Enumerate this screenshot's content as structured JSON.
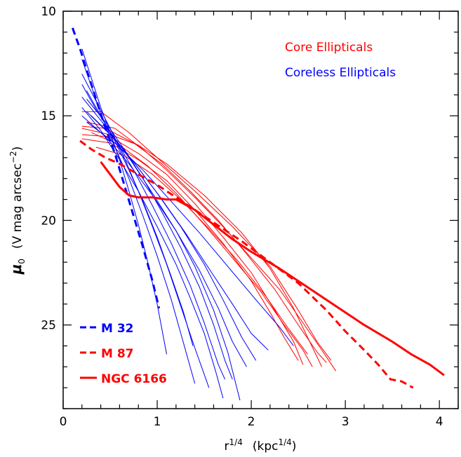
{
  "chart_data": {
    "type": "line",
    "title": "",
    "xlabel": {
      "base": "r",
      "exp": "1/4",
      "unit_open": "(kpc",
      "unit_exp": "1/4",
      "unit_close": ")"
    },
    "ylabel": {
      "symbol": "μ",
      "sub": "0",
      "unit_open": "(V mag arcsec",
      "unit_exp": "−2",
      "unit_close": ")"
    },
    "xlim": [
      0,
      4.2
    ],
    "ylim": [
      29,
      10
    ],
    "y_inverted": true,
    "x_ticks": [
      "0",
      "1",
      "2",
      "3",
      "4"
    ],
    "y_ticks": [
      "10",
      "15",
      "20",
      "25"
    ],
    "grid": false,
    "colors": {
      "core": "#ff0000",
      "coreless": "#0000ff",
      "axis": "#000000"
    },
    "legend": {
      "placement": "top-right",
      "entries": [
        {
          "label": "Core Ellipticals",
          "color": "#ff0000"
        },
        {
          "label": "Coreless Ellipticals",
          "color": "#0000ff"
        }
      ]
    },
    "highlight_legend": {
      "placement": "bottom-left",
      "entries": [
        {
          "label": "M 32",
          "color": "#0000ff",
          "dash": "dashed"
        },
        {
          "label": "M 87",
          "color": "#ff0000",
          "dash": "dashed"
        },
        {
          "label": "NGC 6166",
          "color": "#ff0000",
          "dash": "solid"
        }
      ]
    },
    "series": [
      {
        "group": "highlight",
        "name": "M 32",
        "color": "#0000ff",
        "dash": "dashed",
        "width": 3,
        "points": [
          [
            0.1,
            10.8
          ],
          [
            0.18,
            11.8
          ],
          [
            0.25,
            12.8
          ],
          [
            0.35,
            14.2
          ],
          [
            0.45,
            15.6
          ],
          [
            0.55,
            16.8
          ],
          [
            0.65,
            18.3
          ],
          [
            0.75,
            19.8
          ],
          [
            0.85,
            21.3
          ],
          [
            0.95,
            22.9
          ],
          [
            1.02,
            24.2
          ]
        ]
      },
      {
        "group": "highlight",
        "name": "M 87",
        "color": "#ff0000",
        "dash": "dashed",
        "width": 3,
        "points": [
          [
            0.18,
            16.2
          ],
          [
            0.3,
            16.6
          ],
          [
            0.45,
            17.0
          ],
          [
            0.6,
            17.3
          ],
          [
            0.8,
            17.8
          ],
          [
            1.0,
            18.3
          ],
          [
            1.3,
            19.2
          ],
          [
            1.6,
            20.1
          ],
          [
            1.9,
            21.0
          ],
          [
            2.2,
            22.0
          ],
          [
            2.5,
            23.0
          ],
          [
            2.8,
            24.3
          ],
          [
            3.0,
            25.3
          ],
          [
            3.2,
            26.2
          ],
          [
            3.35,
            26.9
          ],
          [
            3.48,
            27.6
          ],
          [
            3.6,
            27.7
          ],
          [
            3.72,
            28.0
          ]
        ]
      },
      {
        "group": "highlight",
        "name": "NGC 6166",
        "color": "#ff0000",
        "dash": "solid",
        "width": 3,
        "points": [
          [
            0.4,
            17.2
          ],
          [
            0.5,
            17.8
          ],
          [
            0.6,
            18.4
          ],
          [
            0.7,
            18.8
          ],
          [
            0.8,
            18.9
          ],
          [
            0.95,
            18.9
          ],
          [
            1.1,
            19.0
          ],
          [
            1.2,
            19.0
          ],
          [
            1.4,
            19.5
          ],
          [
            1.6,
            20.2
          ],
          [
            1.8,
            20.9
          ],
          [
            2.0,
            21.5
          ],
          [
            2.3,
            22.3
          ],
          [
            2.6,
            23.2
          ],
          [
            2.9,
            24.1
          ],
          [
            3.2,
            25.0
          ],
          [
            3.5,
            25.8
          ],
          [
            3.7,
            26.4
          ],
          [
            3.9,
            26.9
          ],
          [
            4.05,
            27.4
          ]
        ]
      },
      {
        "group": "core",
        "color": "#ff0000",
        "dash": "solid",
        "width": 1,
        "points": [
          [
            0.2,
            14.8
          ],
          [
            0.4,
            14.8
          ],
          [
            0.7,
            15.8
          ],
          [
            1.0,
            17.0
          ],
          [
            1.4,
            18.6
          ],
          [
            1.8,
            20.3
          ],
          [
            2.2,
            22.2
          ],
          [
            2.5,
            24.3
          ],
          [
            2.7,
            25.8
          ],
          [
            2.85,
            26.7
          ]
        ]
      },
      {
        "group": "core",
        "color": "#ff0000",
        "dash": "solid",
        "width": 1,
        "points": [
          [
            0.2,
            15.6
          ],
          [
            0.5,
            15.9
          ],
          [
            0.8,
            16.4
          ],
          [
            1.1,
            17.3
          ],
          [
            1.5,
            18.8
          ],
          [
            1.9,
            20.6
          ],
          [
            2.2,
            22.3
          ],
          [
            2.45,
            24.2
          ],
          [
            2.6,
            25.6
          ],
          [
            2.75,
            27.0
          ]
        ]
      },
      {
        "group": "core",
        "color": "#ff0000",
        "dash": "solid",
        "width": 1,
        "points": [
          [
            0.2,
            15.9
          ],
          [
            0.5,
            16.0
          ],
          [
            0.8,
            16.8
          ],
          [
            1.1,
            17.8
          ],
          [
            1.4,
            19.2
          ],
          [
            1.7,
            20.8
          ],
          [
            2.0,
            22.5
          ],
          [
            2.25,
            24.3
          ],
          [
            2.45,
            25.8
          ],
          [
            2.55,
            26.9
          ]
        ]
      },
      {
        "group": "core",
        "color": "#ff0000",
        "dash": "solid",
        "width": 1,
        "points": [
          [
            0.25,
            15.3
          ],
          [
            0.55,
            15.6
          ],
          [
            0.85,
            16.6
          ],
          [
            1.1,
            17.6
          ],
          [
            1.4,
            18.9
          ],
          [
            1.7,
            20.3
          ],
          [
            2.0,
            21.8
          ],
          [
            2.3,
            23.3
          ],
          [
            2.55,
            24.9
          ],
          [
            2.75,
            26.2
          ],
          [
            2.9,
            27.2
          ]
        ]
      },
      {
        "group": "core",
        "color": "#ff0000",
        "dash": "solid",
        "width": 1,
        "points": [
          [
            0.2,
            16.1
          ],
          [
            0.5,
            16.3
          ],
          [
            0.8,
            17.1
          ],
          [
            1.1,
            18.1
          ],
          [
            1.4,
            19.5
          ],
          [
            1.7,
            21.1
          ],
          [
            2.0,
            22.9
          ],
          [
            2.2,
            24.4
          ],
          [
            2.35,
            25.6
          ],
          [
            2.5,
            26.7
          ]
        ]
      },
      {
        "group": "core",
        "color": "#ff0000",
        "dash": "solid",
        "width": 1,
        "points": [
          [
            0.3,
            15.8
          ],
          [
            0.6,
            16.4
          ],
          [
            0.9,
            17.4
          ],
          [
            1.2,
            18.7
          ],
          [
            1.5,
            20.2
          ],
          [
            1.8,
            21.8
          ],
          [
            2.1,
            23.4
          ],
          [
            2.35,
            25.0
          ],
          [
            2.55,
            26.2
          ],
          [
            2.65,
            27.0
          ]
        ]
      },
      {
        "group": "core",
        "color": "#ff0000",
        "dash": "solid",
        "width": 1,
        "points": [
          [
            0.2,
            15.5
          ],
          [
            0.45,
            15.6
          ],
          [
            0.75,
            16.3
          ],
          [
            1.05,
            17.3
          ],
          [
            1.35,
            18.6
          ],
          [
            1.65,
            20.0
          ],
          [
            1.95,
            21.6
          ],
          [
            2.25,
            23.3
          ],
          [
            2.5,
            25.0
          ],
          [
            2.7,
            26.3
          ],
          [
            2.8,
            26.8
          ]
        ]
      },
      {
        "group": "core",
        "color": "#ff0000",
        "dash": "solid",
        "width": 1,
        "points": [
          [
            0.35,
            16.5
          ],
          [
            0.65,
            16.9
          ],
          [
            0.95,
            17.8
          ],
          [
            1.25,
            19.0
          ],
          [
            1.55,
            20.4
          ],
          [
            1.85,
            21.9
          ],
          [
            2.15,
            23.6
          ],
          [
            2.4,
            25.2
          ],
          [
            2.6,
            26.4
          ]
        ]
      },
      {
        "group": "coreless",
        "color": "#0000ff",
        "dash": "solid",
        "width": 1,
        "points": [
          [
            0.2,
            11.8
          ],
          [
            0.3,
            13.2
          ],
          [
            0.4,
            14.6
          ],
          [
            0.5,
            15.8
          ],
          [
            0.6,
            17.1
          ],
          [
            0.7,
            18.6
          ],
          [
            0.8,
            20.2
          ],
          [
            0.9,
            22.0
          ],
          [
            1.0,
            24.0
          ],
          [
            1.1,
            26.4
          ]
        ]
      },
      {
        "group": "coreless",
        "color": "#0000ff",
        "dash": "solid",
        "width": 1,
        "points": [
          [
            0.2,
            12.3
          ],
          [
            0.3,
            13.6
          ],
          [
            0.4,
            14.9
          ],
          [
            0.55,
            16.5
          ],
          [
            0.7,
            18.0
          ],
          [
            0.85,
            19.8
          ],
          [
            1.0,
            21.7
          ],
          [
            1.15,
            23.8
          ],
          [
            1.3,
            26.2
          ],
          [
            1.4,
            27.8
          ]
        ]
      },
      {
        "group": "coreless",
        "color": "#0000ff",
        "dash": "solid",
        "width": 1,
        "points": [
          [
            0.2,
            13.0
          ],
          [
            0.35,
            14.3
          ],
          [
            0.5,
            15.6
          ],
          [
            0.65,
            17.0
          ],
          [
            0.8,
            18.6
          ],
          [
            0.95,
            20.3
          ],
          [
            1.1,
            22.1
          ],
          [
            1.25,
            24.1
          ],
          [
            1.4,
            26.1
          ],
          [
            1.55,
            28.0
          ]
        ]
      },
      {
        "group": "coreless",
        "color": "#0000ff",
        "dash": "solid",
        "width": 1,
        "points": [
          [
            0.2,
            13.5
          ],
          [
            0.35,
            14.7
          ],
          [
            0.55,
            16.1
          ],
          [
            0.75,
            17.6
          ],
          [
            0.95,
            19.3
          ],
          [
            1.15,
            21.1
          ],
          [
            1.35,
            23.1
          ],
          [
            1.5,
            24.9
          ],
          [
            1.65,
            26.9
          ],
          [
            1.72,
            27.6
          ]
        ]
      },
      {
        "group": "coreless",
        "color": "#0000ff",
        "dash": "solid",
        "width": 1,
        "points": [
          [
            0.25,
            14.2
          ],
          [
            0.45,
            15.3
          ],
          [
            0.65,
            16.6
          ],
          [
            0.85,
            18.0
          ],
          [
            1.05,
            19.6
          ],
          [
            1.25,
            21.3
          ],
          [
            1.45,
            23.2
          ],
          [
            1.6,
            25.0
          ],
          [
            1.72,
            26.7
          ],
          [
            1.8,
            27.6
          ]
        ]
      },
      {
        "group": "coreless",
        "color": "#0000ff",
        "dash": "solid",
        "width": 1,
        "points": [
          [
            0.2,
            14.1
          ],
          [
            0.45,
            15.5
          ],
          [
            0.7,
            17.0
          ],
          [
            0.95,
            18.7
          ],
          [
            1.2,
            20.5
          ],
          [
            1.4,
            22.2
          ],
          [
            1.6,
            24.3
          ],
          [
            1.75,
            26.3
          ],
          [
            1.88,
            28.6
          ]
        ]
      },
      {
        "group": "coreless",
        "color": "#0000ff",
        "dash": "solid",
        "width": 1,
        "points": [
          [
            0.25,
            14.8
          ],
          [
            0.5,
            15.9
          ],
          [
            0.75,
            17.2
          ],
          [
            1.0,
            18.7
          ],
          [
            1.25,
            20.3
          ],
          [
            1.5,
            22.1
          ],
          [
            1.7,
            23.8
          ],
          [
            1.9,
            25.6
          ],
          [
            2.05,
            26.7
          ]
        ]
      },
      {
        "group": "coreless",
        "color": "#0000ff",
        "dash": "solid",
        "width": 1,
        "points": [
          [
            0.3,
            15.0
          ],
          [
            0.55,
            16.1
          ],
          [
            0.8,
            17.5
          ],
          [
            1.05,
            19.0
          ],
          [
            1.3,
            20.6
          ],
          [
            1.55,
            22.3
          ],
          [
            1.8,
            24.0
          ],
          [
            2.0,
            25.4
          ],
          [
            2.18,
            26.2
          ]
        ]
      },
      {
        "group": "coreless",
        "color": "#0000ff",
        "dash": "solid",
        "width": 1,
        "points": [
          [
            0.25,
            15.3
          ],
          [
            0.55,
            16.3
          ],
          [
            0.85,
            17.6
          ],
          [
            1.15,
            19.1
          ],
          [
            1.45,
            20.6
          ],
          [
            1.75,
            22.2
          ],
          [
            2.05,
            23.8
          ],
          [
            2.3,
            25.1
          ],
          [
            2.45,
            26.0
          ]
        ]
      },
      {
        "group": "coreless",
        "color": "#0000ff",
        "dash": "solid",
        "width": 1,
        "points": [
          [
            0.2,
            15.0
          ],
          [
            0.45,
            16.0
          ],
          [
            0.7,
            17.3
          ],
          [
            0.95,
            18.8
          ],
          [
            1.2,
            20.5
          ],
          [
            1.45,
            22.4
          ],
          [
            1.65,
            24.2
          ],
          [
            1.8,
            25.8
          ],
          [
            1.95,
            27.0
          ]
        ]
      },
      {
        "group": "coreless",
        "color": "#0000ff",
        "dash": "solid",
        "width": 1,
        "points": [
          [
            0.2,
            14.6
          ],
          [
            0.4,
            15.7
          ],
          [
            0.6,
            17.1
          ],
          [
            0.8,
            18.6
          ],
          [
            1.0,
            20.3
          ],
          [
            1.2,
            22.1
          ],
          [
            1.35,
            23.7
          ],
          [
            1.5,
            25.4
          ],
          [
            1.62,
            27.2
          ],
          [
            1.7,
            28.5
          ]
        ]
      },
      {
        "group": "coreless",
        "color": "#0000ff",
        "dash": "solid",
        "width": 1,
        "points": [
          [
            0.25,
            13.8
          ],
          [
            0.4,
            15.0
          ],
          [
            0.55,
            16.2
          ],
          [
            0.7,
            17.6
          ],
          [
            0.85,
            19.1
          ],
          [
            1.0,
            20.8
          ],
          [
            1.15,
            22.7
          ],
          [
            1.28,
            24.4
          ],
          [
            1.38,
            26.0
          ]
        ]
      }
    ]
  }
}
